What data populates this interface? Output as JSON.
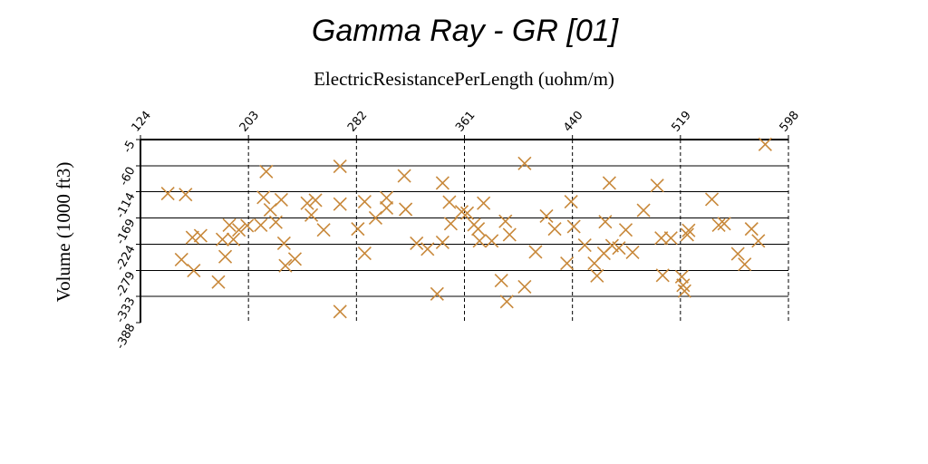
{
  "chart_data": {
    "type": "scatter",
    "title": "Gamma Ray - GR [01]",
    "xlabel": "ElectricResistancePerLength (uohm/m)",
    "ylabel": "Volume (1000 ft3)",
    "x_ticks": [
      "124",
      "203",
      "282",
      "361",
      "440",
      "519",
      "598"
    ],
    "y_ticks": [
      "-5",
      "-60",
      "-114",
      "-169",
      "-224",
      "-279",
      "-333",
      "-388"
    ],
    "xlim": [
      124,
      598
    ],
    "ylim": [
      -388,
      -5
    ],
    "x_axis_position": "top",
    "grid": "horizontal solid, vertical dashed",
    "marker": "x",
    "marker_color": "#c8883a",
    "points": [
      {
        "x": 144,
        "y": -118
      },
      {
        "x": 157,
        "y": -120
      },
      {
        "x": 154,
        "y": -256
      },
      {
        "x": 162,
        "y": -210
      },
      {
        "x": 168,
        "y": -206
      },
      {
        "x": 163,
        "y": -279
      },
      {
        "x": 181,
        "y": -303
      },
      {
        "x": 184,
        "y": -214
      },
      {
        "x": 186,
        "y": -250
      },
      {
        "x": 189,
        "y": -184
      },
      {
        "x": 192,
        "y": -214
      },
      {
        "x": 196,
        "y": -194
      },
      {
        "x": 202,
        "y": -185
      },
      {
        "x": 212,
        "y": -184
      },
      {
        "x": 214,
        "y": -126
      },
      {
        "x": 216,
        "y": -72
      },
      {
        "x": 219,
        "y": -152
      },
      {
        "x": 223,
        "y": -178
      },
      {
        "x": 227,
        "y": -131
      },
      {
        "x": 229,
        "y": -222
      },
      {
        "x": 230,
        "y": -269
      },
      {
        "x": 237,
        "y": -255
      },
      {
        "x": 246,
        "y": -138
      },
      {
        "x": 249,
        "y": -163
      },
      {
        "x": 252,
        "y": -132
      },
      {
        "x": 258,
        "y": -194
      },
      {
        "x": 270,
        "y": -61
      },
      {
        "x": 270,
        "y": -140
      },
      {
        "x": 270,
        "y": -365
      },
      {
        "x": 283,
        "y": -192
      },
      {
        "x": 288,
        "y": -135
      },
      {
        "x": 288,
        "y": -243
      },
      {
        "x": 296,
        "y": -169
      },
      {
        "x": 304,
        "y": -127
      },
      {
        "x": 304,
        "y": -148
      },
      {
        "x": 317,
        "y": -81
      },
      {
        "x": 318,
        "y": -151
      },
      {
        "x": 326,
        "y": -222
      },
      {
        "x": 334,
        "y": -234
      },
      {
        "x": 341,
        "y": -328
      },
      {
        "x": 345,
        "y": -220
      },
      {
        "x": 345,
        "y": -96
      },
      {
        "x": 350,
        "y": -136
      },
      {
        "x": 351,
        "y": -181
      },
      {
        "x": 359,
        "y": -156
      },
      {
        "x": 363,
        "y": -159
      },
      {
        "x": 368,
        "y": -183
      },
      {
        "x": 371,
        "y": -192
      },
      {
        "x": 372,
        "y": -217
      },
      {
        "x": 375,
        "y": -138
      },
      {
        "x": 381,
        "y": -217
      },
      {
        "x": 388,
        "y": -300
      },
      {
        "x": 391,
        "y": -176
      },
      {
        "x": 392,
        "y": -344
      },
      {
        "x": 394,
        "y": -204
      },
      {
        "x": 405,
        "y": -55
      },
      {
        "x": 405,
        "y": -313
      },
      {
        "x": 413,
        "y": -240
      },
      {
        "x": 421,
        "y": -165
      },
      {
        "x": 427,
        "y": -192
      },
      {
        "x": 436,
        "y": -264
      },
      {
        "x": 439,
        "y": -135
      },
      {
        "x": 441,
        "y": -187
      },
      {
        "x": 449,
        "y": -226
      },
      {
        "x": 456,
        "y": -264
      },
      {
        "x": 458,
        "y": -290
      },
      {
        "x": 463,
        "y": -243
      },
      {
        "x": 464,
        "y": -177
      },
      {
        "x": 467,
        "y": -96
      },
      {
        "x": 469,
        "y": -227
      },
      {
        "x": 474,
        "y": -232
      },
      {
        "x": 479,
        "y": -194
      },
      {
        "x": 484,
        "y": -241
      },
      {
        "x": 492,
        "y": -153
      },
      {
        "x": 502,
        "y": -101
      },
      {
        "x": 505,
        "y": -211
      },
      {
        "x": 506,
        "y": -289
      },
      {
        "x": 512,
        "y": -211
      },
      {
        "x": 520,
        "y": -292
      },
      {
        "x": 521,
        "y": -310
      },
      {
        "x": 522,
        "y": -322
      },
      {
        "x": 524,
        "y": -204
      },
      {
        "x": 525,
        "y": -195
      },
      {
        "x": 542,
        "y": -130
      },
      {
        "x": 547,
        "y": -184
      },
      {
        "x": 551,
        "y": -181
      },
      {
        "x": 561,
        "y": -244
      },
      {
        "x": 566,
        "y": -266
      },
      {
        "x": 571,
        "y": -192
      },
      {
        "x": 576,
        "y": -217
      },
      {
        "x": 581,
        "y": -15
      }
    ]
  }
}
